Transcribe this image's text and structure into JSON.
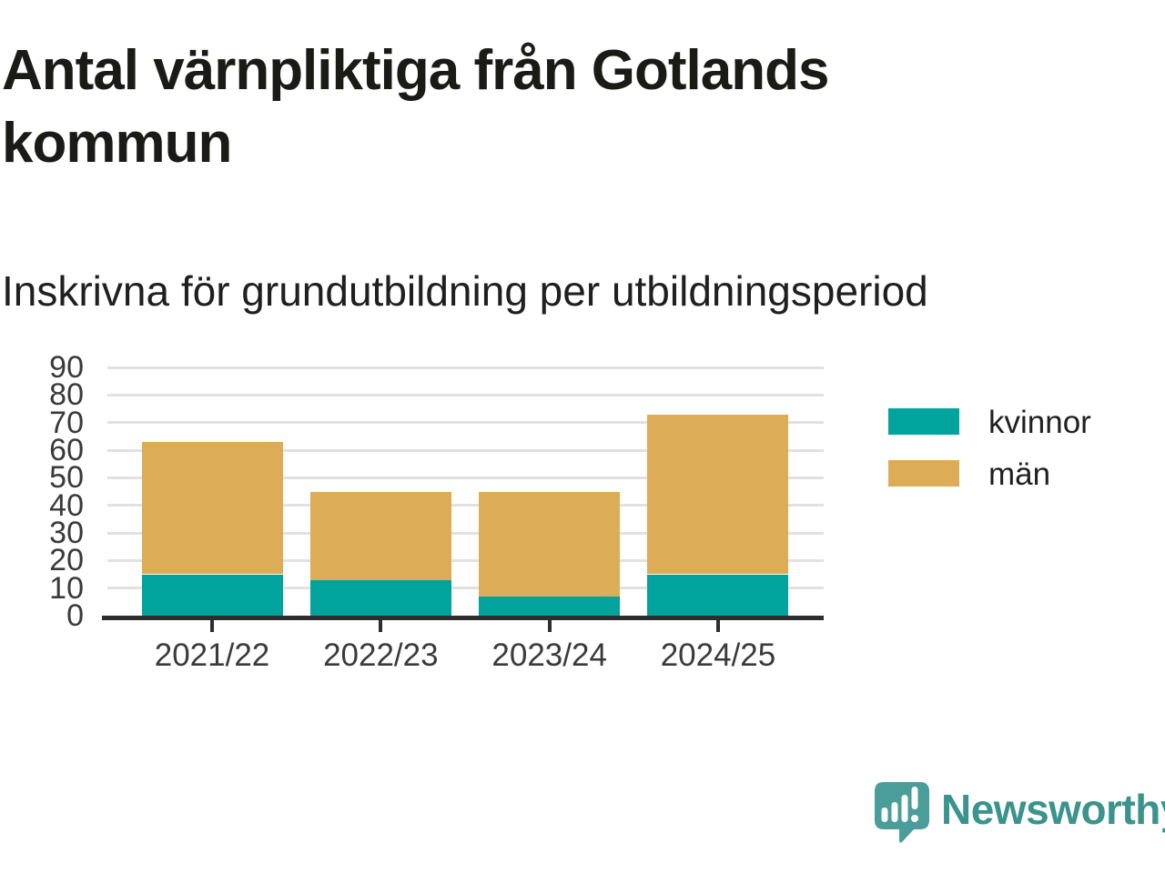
{
  "title": "Antal värnpliktiga från Gotlands kommun",
  "subtitle": "Inskrivna för grundutbildning per utbildningsperiod",
  "chart_data": {
    "type": "bar",
    "stacked": true,
    "title": "Antal värnpliktiga från Gotlands kommun",
    "subtitle": "Inskrivna för grundutbildning per utbildningsperiod",
    "categories": [
      "2021/22",
      "2022/23",
      "2023/24",
      "2024/25"
    ],
    "series": [
      {
        "name": "kvinnor",
        "color": "#00a49c",
        "values": [
          15,
          13,
          7,
          15
        ]
      },
      {
        "name": "män",
        "color": "#dcac57",
        "values": [
          48,
          32,
          38,
          58
        ]
      }
    ],
    "stacked_totals": [
      63,
      45,
      45,
      73
    ],
    "xlabel": "",
    "ylabel": "",
    "ylim": [
      0,
      90
    ],
    "y_ticks": [
      0,
      10,
      20,
      30,
      40,
      50,
      60,
      70,
      80,
      90
    ],
    "grid": true,
    "legend_position": "right-of-plot"
  },
  "colors": {
    "kvinnor": "#00a49c",
    "man": "#dcac57",
    "gridline": "#e1e1e1",
    "axis": "#2d2d2d",
    "title_text": "#1a1a17",
    "axis_text": "#3a3a3a"
  },
  "branding": {
    "logo_text": "Newsworthy",
    "logo_icon": "bar-chart-speech-bubble-icon",
    "icon_color": "#4a9d98",
    "text_color": "#3a938d"
  }
}
